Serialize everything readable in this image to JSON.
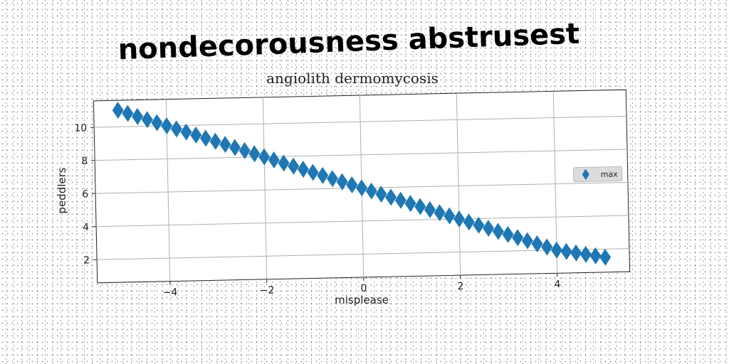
{
  "page_title": "nondecorousness abstrusest",
  "chart_data": {
    "type": "scatter",
    "title": "angiolith dermomycosis",
    "xlabel": "misplease",
    "ylabel": "peddlers",
    "xlim": [
      -5.5,
      5.5
    ],
    "ylim": [
      0.6,
      11.6
    ],
    "xticks": [
      -4,
      -2,
      0,
      2,
      4
    ],
    "xtick_labels": [
      "−4",
      "−2",
      "0",
      "2",
      "4"
    ],
    "yticks": [
      2,
      4,
      6,
      8,
      10
    ],
    "ytick_labels": [
      "2",
      "4",
      "6",
      "8",
      "10"
    ],
    "grid": true,
    "legend_position": "right",
    "marker": "diamond",
    "series": [
      {
        "name": "max",
        "color": "#1f77b4",
        "x": [
          -5.0,
          -4.8,
          -4.6,
          -4.4,
          -4.2,
          -4.0,
          -3.8,
          -3.6,
          -3.4,
          -3.2,
          -3.0,
          -2.8,
          -2.6,
          -2.4,
          -2.2,
          -2.0,
          -1.8,
          -1.6,
          -1.4,
          -1.2,
          -1.0,
          -0.8,
          -0.6,
          -0.4,
          -0.2,
          0.0,
          0.2,
          0.4,
          0.6,
          0.8,
          1.0,
          1.2,
          1.4,
          1.6,
          1.8,
          2.0,
          2.2,
          2.4,
          2.6,
          2.8,
          3.0,
          3.2,
          3.4,
          3.6,
          3.8,
          4.0,
          4.2,
          4.4,
          4.6,
          4.8,
          5.0
        ],
        "y": [
          11.0,
          10.8,
          10.6,
          10.4,
          10.2,
          10.0,
          9.8,
          9.6,
          9.4,
          9.2,
          9.0,
          8.8,
          8.6,
          8.4,
          8.2,
          8.0,
          7.8,
          7.6,
          7.4,
          7.2,
          7.0,
          6.8,
          6.6,
          6.4,
          6.2,
          6.0,
          5.8,
          5.6,
          5.4,
          5.2,
          5.0,
          4.8,
          4.6,
          4.4,
          4.2,
          4.0,
          3.8,
          3.6,
          3.4,
          3.2,
          3.0,
          2.8,
          2.6,
          2.4,
          2.2,
          2.0,
          1.9,
          1.8,
          1.7,
          1.6,
          1.5
        ]
      }
    ]
  }
}
